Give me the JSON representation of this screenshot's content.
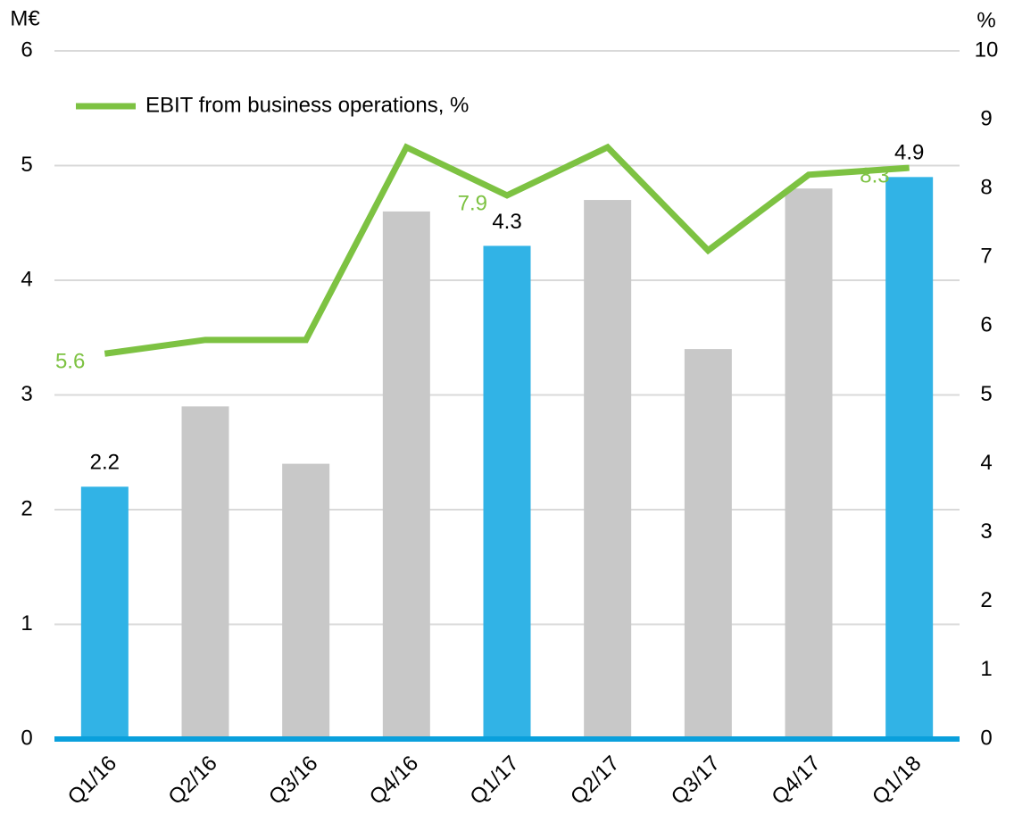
{
  "chart_data": {
    "type": "bar",
    "y_unit": "M€",
    "y2_unit": "%",
    "categories": [
      "Q1/16",
      "Q2/16",
      "Q3/16",
      "Q4/16",
      "Q1/17",
      "Q2/17",
      "Q3/17",
      "Q4/17",
      "Q1/18"
    ],
    "series": [
      {
        "name": "EBIT",
        "type": "bar",
        "colors": [
          "#31b3e6",
          "#c8c8c8",
          "#c8c8c8",
          "#c8c8c8",
          "#31b3e6",
          "#c8c8c8",
          "#c8c8c8",
          "#c8c8c8",
          "#31b3e6"
        ],
        "values": [
          2.2,
          2.9,
          2.4,
          4.6,
          4.3,
          4.7,
          3.4,
          4.8,
          4.9
        ],
        "value_labels": [
          "2.2",
          null,
          null,
          null,
          "4.3",
          null,
          null,
          null,
          "4.9"
        ]
      },
      {
        "name": "EBIT from business operations, %",
        "type": "line",
        "axis": "y2",
        "color": "#7dc242",
        "values": [
          5.6,
          5.8,
          5.8,
          8.6,
          7.9,
          8.6,
          7.1,
          8.2,
          8.3
        ],
        "value_labels": [
          "5.6",
          null,
          null,
          null,
          "7.9",
          null,
          null,
          null,
          "8.3"
        ]
      }
    ],
    "ylim": [
      0,
      6
    ],
    "yticks": [
      0,
      1,
      2,
      3,
      4,
      5,
      6
    ],
    "y2lim": [
      0,
      10
    ],
    "y2ticks": [
      0,
      1,
      2,
      3,
      4,
      5,
      6,
      7,
      8,
      9,
      10
    ],
    "grid": true,
    "baseline_color": "#0aa0dc"
  }
}
